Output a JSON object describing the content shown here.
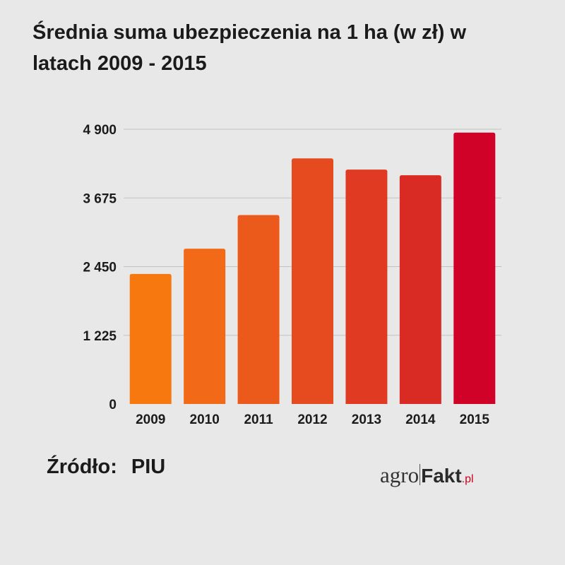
{
  "title": "Średnia suma ubezpieczenia na 1 ha (w zł) w latach 2009 - 2015",
  "source": {
    "label": "Źródło:",
    "value": "PIU"
  },
  "logo": {
    "part1": "agro",
    "part2": "Fakt",
    "part3": ".pl"
  },
  "chart_data": {
    "type": "bar",
    "title": "Średnia suma ubezpieczenia na 1 ha (w zł) w latach 2009 - 2015",
    "categories": [
      "2009",
      "2010",
      "2011",
      "2012",
      "2013",
      "2014",
      "2015"
    ],
    "values": [
      2320,
      2770,
      3370,
      4380,
      4180,
      4080,
      4840
    ],
    "ylim": [
      0,
      4900
    ],
    "yticks": [
      0,
      1225,
      2450,
      3675,
      4900
    ],
    "ytick_labels": [
      "0",
      "1 225",
      "2 450",
      "3 675",
      "4 900"
    ],
    "colors": [
      "#f7780e",
      "#f26a17",
      "#ec5a1b",
      "#e64a1f",
      "#e03a22",
      "#d92b24",
      "#d10228"
    ],
    "grid": true,
    "xlabel": "",
    "ylabel": ""
  }
}
